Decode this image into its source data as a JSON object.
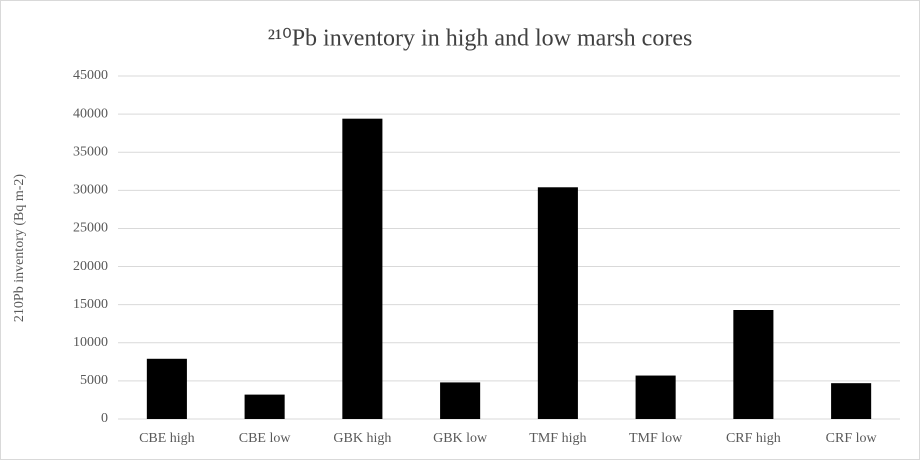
{
  "chart_data": {
    "type": "bar",
    "title": "²¹⁰Pb inventory in high and low marsh cores",
    "y_label": "210Pb inventory (Bq m-2)",
    "categories": [
      "CBE high",
      "CBE low",
      "GBK high",
      "GBK low",
      "TMF high",
      "TMF low",
      "CRF high",
      "CRF low"
    ],
    "values": [
      7900,
      3200,
      39400,
      4800,
      30400,
      5700,
      14300,
      4700
    ],
    "color": "#000000",
    "ylim": [
      0,
      45000
    ],
    "yticks": [
      0,
      5000,
      10000,
      15000,
      20000,
      25000,
      30000,
      35000,
      40000,
      45000
    ],
    "grid": true
  }
}
